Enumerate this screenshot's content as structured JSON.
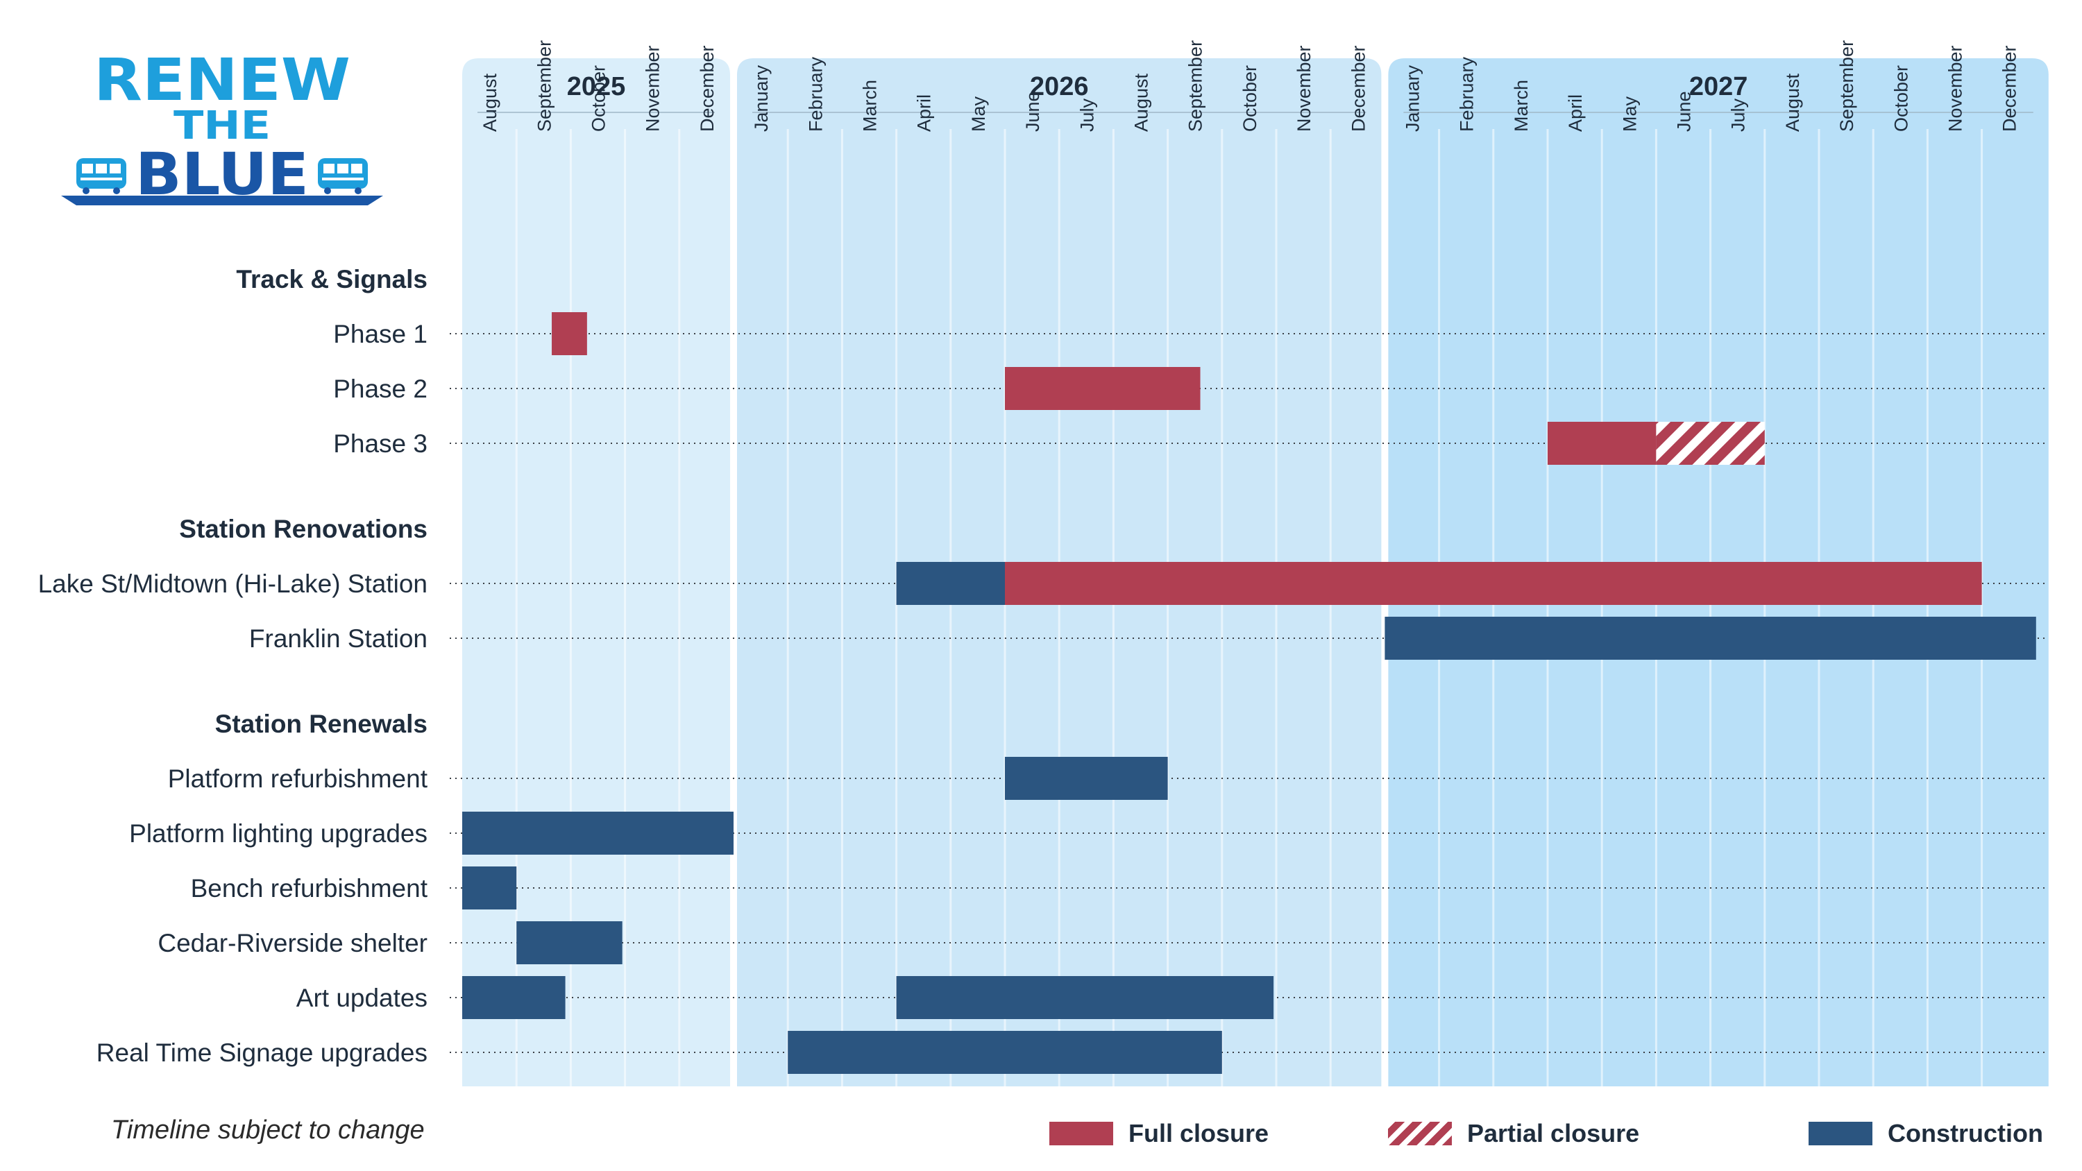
{
  "logo": {
    "line1": "RENEW",
    "line2": "THE",
    "line3": "BLUE"
  },
  "colors": {
    "full_closure": "#b03f52",
    "construction": "#2b5580",
    "bg_2025": "#daeefa",
    "bg_2026": "#cce7f8",
    "bg_2027": "#b9e0f8",
    "logo_light": "#1e9fdc",
    "logo_dark": "#1a56a6"
  },
  "chart_data": {
    "type": "gantt",
    "title": "Renew the Blue",
    "years": [
      {
        "label": "2025",
        "months": [
          "August",
          "September",
          "October",
          "November",
          "December"
        ]
      },
      {
        "label": "2026",
        "months": [
          "January",
          "February",
          "March",
          "April",
          "May",
          "June",
          "July",
          "August",
          "September",
          "October",
          "November",
          "December"
        ]
      },
      {
        "label": "2027",
        "months": [
          "January",
          "February",
          "March",
          "April",
          "May",
          "June",
          "July",
          "August",
          "September",
          "October",
          "November",
          "December"
        ]
      }
    ],
    "groups": [
      {
        "label": "Track & Signals",
        "rows": [
          {
            "label": "Phase 1",
            "bars": [
              {
                "type": "full",
                "start": 1.65,
                "end": 2.3
              }
            ]
          },
          {
            "label": "Phase 2",
            "bars": [
              {
                "type": "full",
                "start": 10.0,
                "end": 13.6
              }
            ]
          },
          {
            "label": "Phase 3",
            "bars": [
              {
                "type": "full",
                "start": 20.0,
                "end": 22.0
              },
              {
                "type": "partial",
                "start": 22.0,
                "end": 24.0
              }
            ]
          }
        ]
      },
      {
        "label": "Station Renovations",
        "rows": [
          {
            "label": "Lake St/Midtown (Hi-Lake) Station",
            "bars": [
              {
                "type": "construction",
                "start": 8.0,
                "end": 10.0
              },
              {
                "type": "full",
                "start": 10.0,
                "end": 28.0
              }
            ]
          },
          {
            "label": "Franklin Station",
            "bars": [
              {
                "type": "construction",
                "start": 17.0,
                "end": 29.0
              }
            ]
          }
        ]
      },
      {
        "label": "Station Renewals",
        "rows": [
          {
            "label": "Platform refurbishment",
            "bars": [
              {
                "type": "construction",
                "start": 10.0,
                "end": 13.0
              }
            ]
          },
          {
            "label": "Platform lighting upgrades",
            "bars": [
              {
                "type": "construction",
                "start": 0.0,
                "end": 5.0
              }
            ]
          },
          {
            "label": "Bench refurbishment",
            "bars": [
              {
                "type": "construction",
                "start": 0.0,
                "end": 1.0
              }
            ]
          },
          {
            "label": "Cedar-Riverside shelter",
            "bars": [
              {
                "type": "construction",
                "start": 1.0,
                "end": 2.95
              }
            ]
          },
          {
            "label": "Art updates",
            "bars": [
              {
                "type": "construction",
                "start": 0.0,
                "end": 1.9
              },
              {
                "type": "construction",
                "start": 8.0,
                "end": 14.95
              }
            ]
          },
          {
            "label": "Real Time Signage upgrades",
            "bars": [
              {
                "type": "construction",
                "start": 6.0,
                "end": 14.0
              }
            ]
          }
        ]
      }
    ],
    "legend": [
      {
        "key": "full",
        "label": "Full closure"
      },
      {
        "key": "partial",
        "label": "Partial closure"
      },
      {
        "key": "construction",
        "label": "Construction"
      }
    ]
  },
  "note": "Timeline subject to change"
}
